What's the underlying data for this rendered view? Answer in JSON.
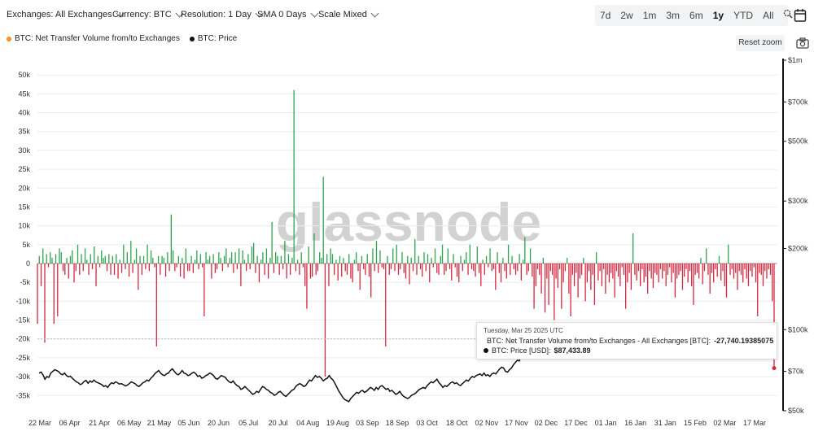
{
  "toolbar": {
    "exchanges": "Exchanges: All Exchanges",
    "currency": "Currency: BTC",
    "resolution": "Resolution: 1 Day",
    "sma": "SMA 0 Days",
    "scale": "Scale Mixed",
    "ranges": [
      "7d",
      "2w",
      "1m",
      "3m",
      "6m",
      "1y",
      "YTD",
      "All"
    ],
    "active_range": "1y"
  },
  "legend": {
    "flow": "BTC: Net Transfer Volume from/to Exchanges",
    "price": "BTC: Price",
    "flow_color": "#f7931a",
    "price_color": "#111111"
  },
  "reset_zoom": "Reset zoom",
  "watermark": "glassnode",
  "tooltip": {
    "date": "Tuesday, Mar 25 2025 UTC",
    "flow_label": "BTC: Net Transfer Volume from/to Exchanges - All Exchanges [BTC]:",
    "flow_value": "-27,740.19385075",
    "price_label": "BTC: Price [USD]:",
    "price_value": "$87,433.89"
  },
  "chart_data": {
    "type": "bar",
    "colors": {
      "positive": "#2ea44f",
      "negative": "#d7263d",
      "price": "#111111"
    },
    "x_tick_labels": [
      "22 Mar",
      "06 Apr",
      "21 Apr",
      "06 May",
      "21 May",
      "05 Jun",
      "20 Jun",
      "05 Jul",
      "20 Jul",
      "04 Aug",
      "19 Aug",
      "03 Sep",
      "18 Sep",
      "03 Oct",
      "18 Oct",
      "02 Nov",
      "17 Nov",
      "02 Dec",
      "17 Dec",
      "01 Jan",
      "16 Jan",
      "31 Jan",
      "15 Feb",
      "02 Mar",
      "17 Mar"
    ],
    "y_left_ticks": [
      "50k",
      "45k",
      "40k",
      "35k",
      "30k",
      "25k",
      "20k",
      "15k",
      "10k",
      "5k",
      "0",
      "-5k",
      "-10k",
      "-15k",
      "-20k",
      "-25k",
      "-30k",
      "-35k"
    ],
    "y_left_range": [
      -40000,
      50000
    ],
    "y_right_ticks": [
      "$1m",
      "$700k",
      "$500k",
      "$300k",
      "$200k",
      "$100k",
      "$70k",
      "$50k"
    ],
    "y_right_scale": "log",
    "y_right_range": [
      50000,
      1000000
    ],
    "net_flow_btc": [
      -16000,
      2000,
      -6000,
      4000,
      -21000,
      2500,
      -1000,
      3000,
      1500,
      -16000,
      2500,
      -14000,
      4000,
      3000,
      -2000,
      -3000,
      1500,
      -4000,
      2000,
      3500,
      -5000,
      -2000,
      5000,
      -3000,
      2500,
      -2000,
      4000,
      1000,
      -3000,
      2500,
      -1500,
      4500,
      -6000,
      2000,
      -1000,
      3500,
      1500,
      2000,
      -2000,
      2500,
      -3000,
      2000,
      -3000,
      2500,
      -4000,
      1000,
      -2500,
      5000,
      -1500,
      3000,
      -3500,
      6000,
      -2500,
      1000,
      4000,
      -7000,
      2000,
      -3000,
      2000,
      -1500,
      5000,
      -2000,
      3500,
      1500,
      -1000,
      -22000,
      2000,
      -3000,
      2000,
      1500,
      -3500,
      3000,
      -2000,
      13000,
      3500,
      -2000,
      -1000,
      2000,
      -3500,
      1500,
      -4000,
      4000,
      -2000,
      -2000,
      2000,
      -2500,
      1000,
      3500,
      -1500,
      2500,
      -1000,
      -14000,
      3000,
      1000,
      2000,
      -4000,
      2500,
      -2500,
      -1500,
      3000,
      1500,
      -2000,
      2000,
      4000,
      -1000,
      1500,
      3000,
      -2500,
      3000,
      -1500,
      4000,
      -6000,
      3500,
      1000,
      -2000,
      2500,
      -1500,
      4500,
      5500,
      -2500,
      2000,
      -5000,
      1000,
      3000,
      -3000,
      4000,
      -4000,
      1500,
      11000,
      -2500,
      3000,
      2000,
      -3000,
      2000,
      -1500,
      6000,
      -4000,
      2500,
      -3000,
      1500,
      46000,
      -2000,
      1000,
      -3000,
      3000,
      -1000,
      -6000,
      -12000,
      4500,
      -4000,
      -3500,
      8000,
      -3000,
      -2000,
      3000,
      1500,
      23000,
      -30000,
      2500,
      -6000,
      4000,
      2500,
      -3000,
      1000,
      -4500,
      2000,
      -3500,
      1500,
      -2000,
      -3000,
      2500,
      -4000,
      -5000,
      1000,
      3000,
      -2000,
      -7000,
      2000,
      -1500,
      -3000,
      2500,
      -3500,
      -9000,
      4000,
      -2000,
      6000,
      -2500,
      3500,
      -1000,
      -1500,
      -22000,
      2000,
      -3000,
      -1500,
      4000,
      -2000,
      5000,
      -3000,
      -1500,
      3000,
      -2500,
      -4000,
      2000,
      -5500,
      1500,
      -2000,
      6500,
      -3000,
      2000,
      -1500,
      -3500,
      3000,
      -2000,
      2500,
      -5000,
      1500,
      -1000,
      4000,
      -2500,
      -3000,
      2000,
      5000,
      -3000,
      -2000,
      4000,
      -1500,
      -4500,
      2500,
      -1000,
      -3500,
      -5000,
      2000,
      -2000,
      1000,
      3000,
      -3000,
      5000,
      -1500,
      -2000,
      -3500,
      4500,
      -2500,
      -6000,
      1000,
      -3000,
      2000,
      -1000,
      4000,
      -2000,
      -1500,
      -7000,
      3000,
      -2500,
      -5000,
      1500,
      -2000,
      -4000,
      5000,
      -3000,
      2000,
      -1500,
      -3000,
      -2000,
      2500,
      -4500,
      1000,
      7000,
      -3000,
      -2000,
      4000,
      -3500,
      -12000,
      -6000,
      -1500,
      -3000,
      -8000,
      1500,
      -13000,
      -4000,
      -11000,
      -2000,
      -3000,
      -15000,
      -4000,
      -6500,
      -1500,
      -12000,
      -5000,
      -2000,
      1500,
      -8000,
      -14000,
      -3000,
      -6000,
      -2500,
      -9000,
      -4000,
      -3000,
      1500,
      -10000,
      -5000,
      -2000,
      -7000,
      -3000,
      -11000,
      3000,
      -4500,
      -2000,
      -6000,
      -1500,
      -8000,
      -3000,
      -5000,
      -2500,
      -4000,
      -9000,
      -2000,
      -3500,
      -6000,
      -1000,
      -3000,
      -12000,
      -5000,
      -2500,
      -7000,
      8000,
      -3000,
      -4500,
      -2000,
      -6000,
      -1500,
      -5000,
      -3500,
      -8000,
      -2000,
      -4000,
      -6500,
      -2500,
      -3000,
      -5000,
      -1500,
      -4000,
      -2000,
      -6000,
      -3000,
      -1000,
      -5000,
      -2500,
      -9000,
      -4000,
      -3000,
      -2000,
      -7000,
      -3500,
      -1500,
      -5000,
      -2000,
      -6000,
      -11000,
      -3000,
      -2500,
      -4000,
      1500,
      -5500,
      -2000,
      4000,
      -3000,
      -8000,
      -2500,
      -5000,
      -1500,
      -3500,
      2000,
      -4500,
      -2000,
      -6000,
      -9000,
      5000,
      -3000,
      -1500,
      -4000,
      -2500,
      -7000,
      -2000,
      -3000,
      -5000,
      -1500,
      -4000,
      -6000,
      -2000,
      -3500,
      -1000,
      -5000,
      -14000,
      -2500,
      -3000,
      -6000,
      -2000,
      -4000,
      -1500,
      -3000,
      -10000,
      -27740
    ],
    "price_usd": [
      69000,
      69500,
      68000,
      65500,
      67000,
      66500,
      69000,
      70000,
      71000,
      70500,
      69800,
      68500,
      68000,
      69000,
      67500,
      66800,
      67200,
      66000,
      65000,
      64000,
      63500,
      62500,
      63000,
      64200,
      64800,
      63200,
      64500,
      63800,
      65000,
      64000,
      63500,
      63000,
      62500,
      61500,
      62000,
      61000,
      62500,
      63500,
      63000,
      64000,
      63500,
      62800,
      63000,
      62500,
      61800,
      62200,
      63000,
      64000,
      63500,
      63000,
      62000,
      61500,
      62500,
      63500,
      64000,
      65000,
      64500,
      66000,
      67000,
      68500,
      69500,
      70500,
      69000,
      68000,
      67500,
      68500,
      69000,
      70500,
      71500,
      70000,
      68500,
      68000,
      69000,
      70500,
      69000,
      68500,
      67500,
      68000,
      69000,
      69500,
      68500,
      67000,
      67500,
      66000,
      66500,
      67500,
      68000,
      69000,
      68500,
      67500,
      66000,
      65500,
      66500,
      67500,
      67000,
      66500,
      65000,
      64000,
      63500,
      64500,
      63000,
      62000,
      61500,
      60000,
      60500,
      61500,
      60500,
      59500,
      58500,
      57500,
      58000,
      59000,
      58500,
      60000,
      61500,
      61000,
      60000,
      59500,
      58500,
      58000,
      57000,
      57500,
      58500,
      59000,
      58000,
      57000,
      56500,
      57500,
      58500,
      59500,
      60000,
      61500,
      62500,
      63000,
      62500,
      61500,
      62000,
      63500,
      65000,
      64500,
      66000,
      67500,
      66500,
      67000,
      66000,
      64500,
      65500,
      66000,
      67500,
      66000,
      65000,
      63000,
      61000,
      59000,
      57500,
      56000,
      55000,
      54500,
      54000,
      55500,
      56500,
      57500,
      58500,
      58000,
      59000,
      59500,
      58500,
      59000,
      60000,
      61000,
      60500,
      59500,
      61000,
      60000,
      61500,
      62000,
      61000,
      60000,
      60500,
      59000,
      59500,
      58500,
      57500,
      58000,
      59000,
      57500,
      56500,
      56000,
      55500,
      56000,
      57000,
      57500,
      58000,
      59000,
      60000,
      60500,
      61000,
      60500,
      62000,
      63000,
      64000,
      63500,
      64500,
      65500,
      63500,
      62500,
      61000,
      62000,
      61500,
      62500,
      63500,
      64000,
      63000,
      63500,
      62500,
      62000,
      63000,
      64000,
      65000,
      64500,
      66000,
      67000,
      66500,
      67500,
      68000,
      68500,
      67500,
      69000,
      67500,
      68000,
      67000,
      68500,
      69000,
      68500,
      70000,
      71500,
      72500,
      72000,
      70000,
      69500,
      71000,
      72000,
      74000,
      75500,
      77000,
      76500,
      80000,
      82000,
      85000,
      88000,
      87000,
      90000,
      91500,
      90500,
      93000,
      97000,
      98500,
      96000,
      97000,
      95000,
      96000,
      98000,
      97500,
      96000,
      99000,
      100500,
      98000,
      97000,
      96500,
      97500,
      99000,
      100000,
      98500,
      101000,
      102500,
      104000,
      106000,
      104000,
      101000,
      99000,
      97000,
      95000,
      97000,
      98000,
      96000,
      94000,
      95500,
      97500,
      96500,
      94500,
      92500,
      93000,
      94500,
      96000,
      97500,
      98500,
      100500,
      102000,
      101000,
      97000,
      98000,
      96000,
      94000,
      96000,
      95000,
      92000,
      93000,
      94500,
      96000,
      98500,
      100000,
      104000,
      103000,
      106000,
      104500,
      102000,
      100500,
      102000,
      101000,
      99500,
      100000,
      101500,
      102000,
      100500,
      99000,
      98000,
      97000,
      96500,
      98000,
      97500,
      96000,
      97000,
      95500,
      96000,
      97500,
      96500,
      95000,
      96000,
      97000,
      95500,
      96000,
      97000,
      96000,
      95500,
      96500,
      94000,
      92000,
      90000,
      88500,
      86000,
      87000,
      84500,
      85000,
      86500,
      84000,
      86000,
      87500,
      90000,
      92000,
      88000,
      86000,
      85000,
      83000,
      82000,
      81000,
      80500,
      82000,
      83500,
      84000,
      82500,
      83500,
      84500,
      86000,
      87000,
      86500,
      87433
    ]
  }
}
